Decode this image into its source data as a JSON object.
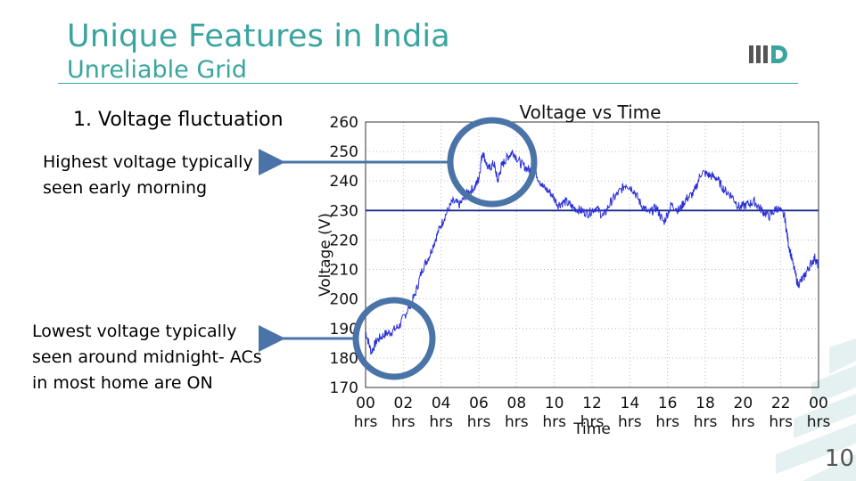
{
  "slide": {
    "title": "Unique Features in India",
    "subtitle": "Unreliable Grid",
    "point": "1. Voltage fluctuation",
    "note_high": "Highest voltage typically seen early morning",
    "note_low": "Lowest voltage typically seen around midnight- ACs in most home are ON",
    "page_number": "10"
  },
  "colors": {
    "accent": "#3aa5a0",
    "series": "#2a2fd4",
    "reference": "#1a2a8c",
    "circle": "#4a73a8"
  },
  "chart_data": {
    "type": "line",
    "title": "Voltage vs Time",
    "xlabel": "Time",
    "ylabel": "Voltage (V)",
    "ylim": [
      170,
      260
    ],
    "yticks": [
      170,
      180,
      190,
      200,
      210,
      220,
      230,
      240,
      250,
      260
    ],
    "xticks": [
      "00 hrs",
      "02 hrs",
      "04 hrs",
      "06 hrs",
      "08 hrs",
      "10 hrs",
      "12 hrs",
      "14 hrs",
      "16 hrs",
      "18 hrs",
      "20 hrs",
      "22 hrs",
      "00 hrs"
    ],
    "xlim_hours": [
      0,
      24
    ],
    "grid": true,
    "reference_line": 230,
    "series": [
      {
        "x_hours": [
          0,
          0.3,
          0.6,
          1,
          1.4,
          1.8,
          2.2,
          2.6,
          3,
          3.4,
          3.8,
          4.2,
          4.6,
          5,
          5.4,
          5.8,
          6,
          6.2,
          6.5,
          6.8,
          7,
          7.2,
          7.5,
          7.8,
          8.2,
          8.6,
          9,
          9.4,
          9.8,
          10.2,
          10.6,
          11,
          11.4,
          11.8,
          12.2,
          12.6,
          13,
          13.4,
          13.8,
          14.2,
          14.6,
          15,
          15.4,
          15.8,
          16.2,
          16.6,
          17,
          17.4,
          17.8,
          18.2,
          18.6,
          19,
          19.4,
          19.8,
          20.2,
          20.6,
          21,
          21.4,
          21.8,
          22.2,
          22.4,
          22.6,
          22.9,
          23.2,
          23.5,
          23.8,
          24
        ],
        "values": [
          189,
          182,
          186,
          188,
          189,
          191,
          196,
          201,
          210,
          215,
          222,
          228,
          233,
          232,
          236,
          238,
          241,
          250,
          244,
          246,
          240,
          245,
          248,
          250,
          246,
          244,
          243,
          238,
          236,
          232,
          233,
          231,
          230,
          229,
          231,
          228,
          233,
          236,
          239,
          237,
          232,
          229,
          231,
          226,
          232,
          230,
          234,
          236,
          243,
          242,
          241,
          237,
          235,
          231,
          232,
          233,
          230,
          228,
          231,
          228,
          219,
          213,
          205,
          207,
          211,
          214,
          211
        ]
      }
    ]
  }
}
